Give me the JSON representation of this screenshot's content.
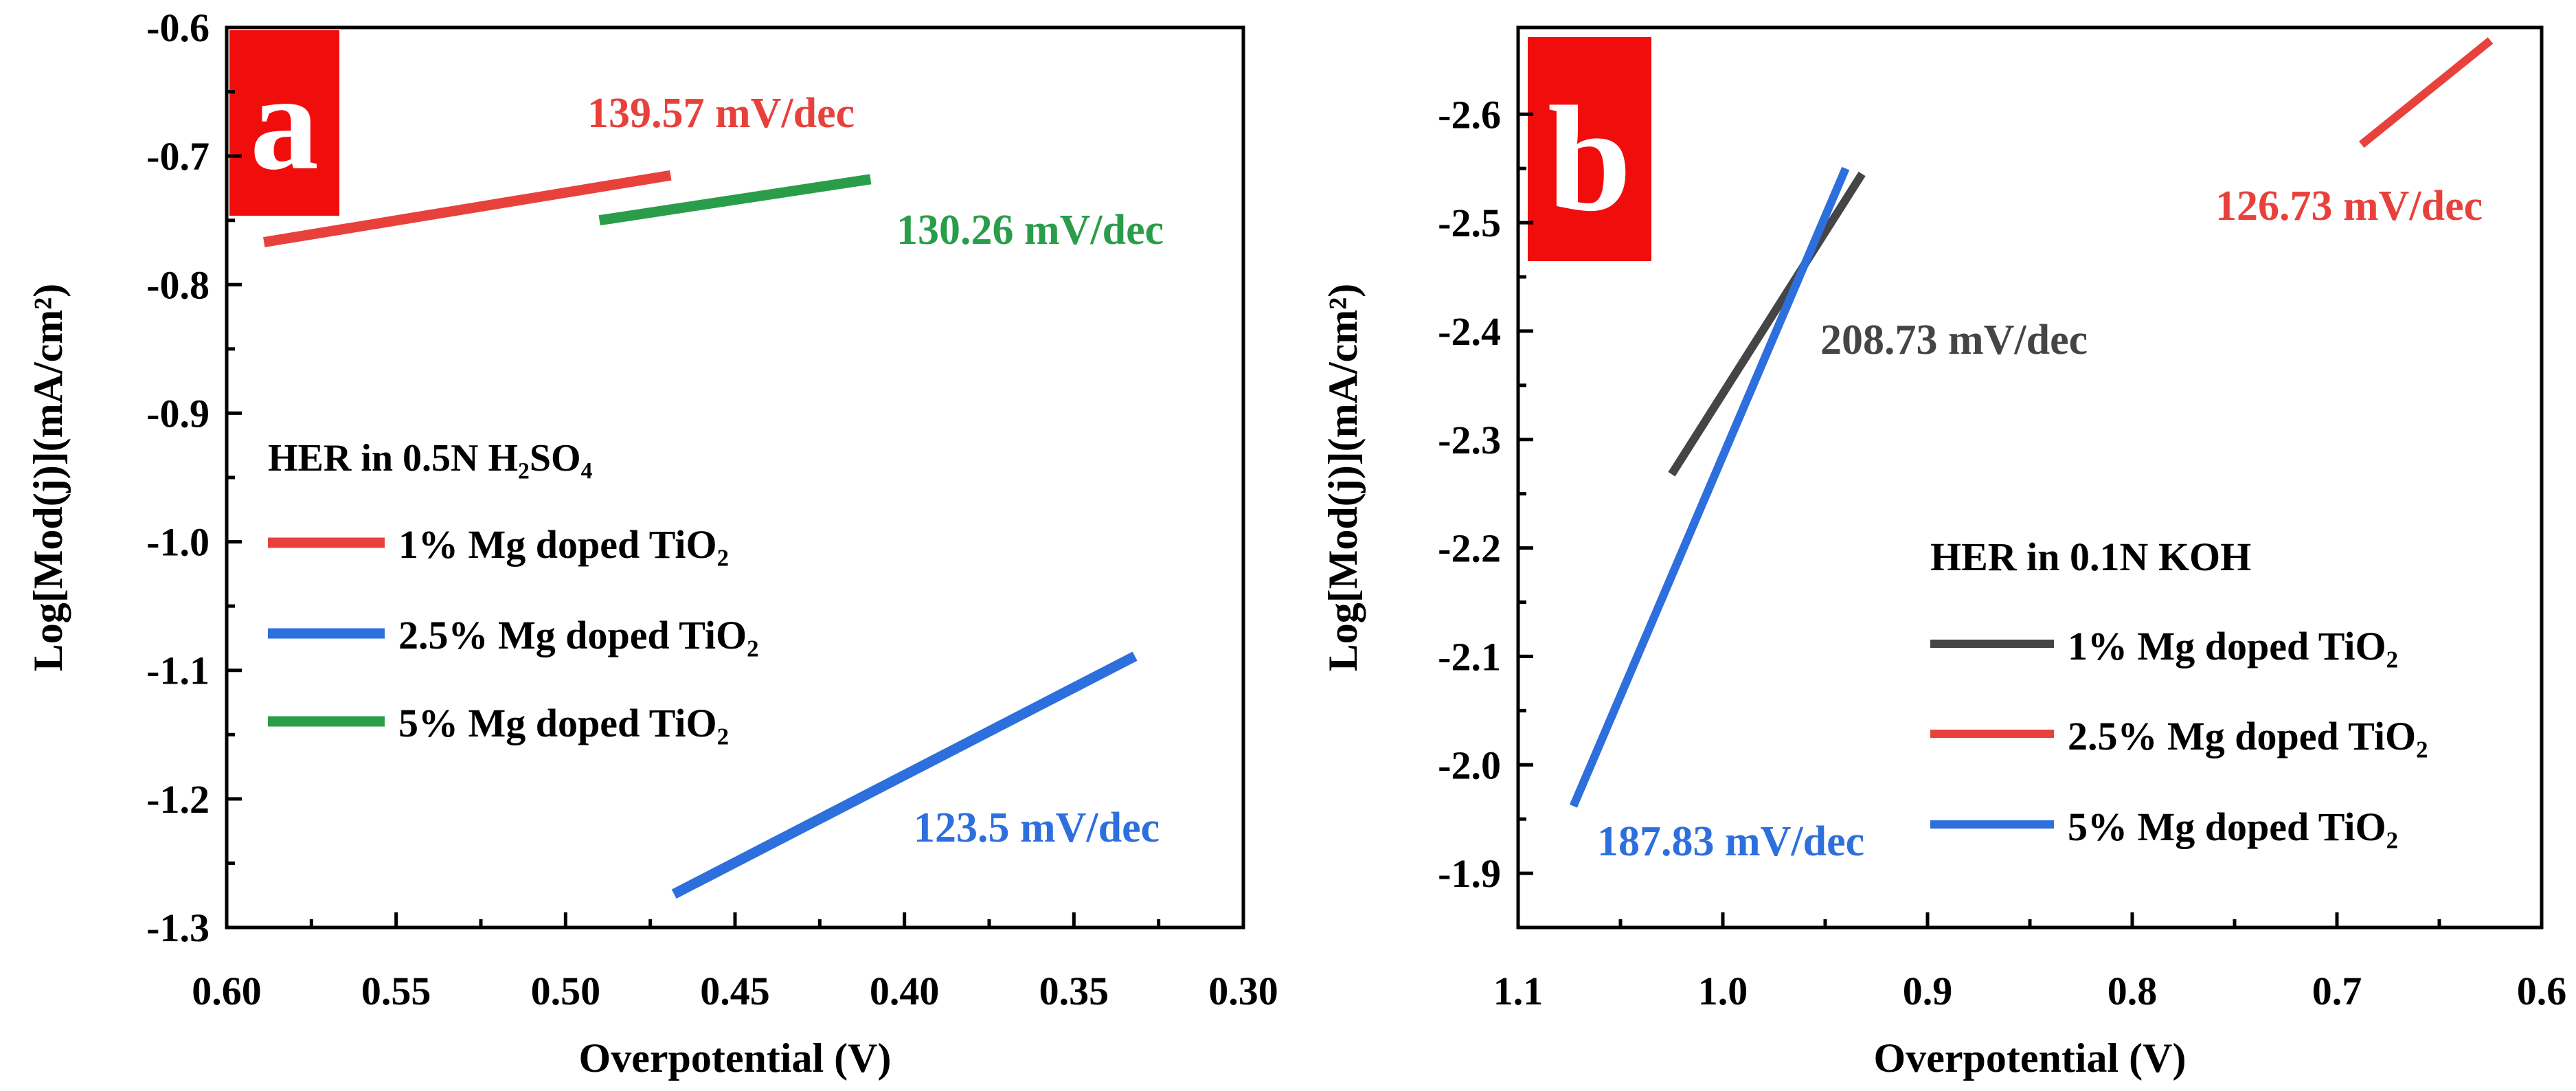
{
  "chart_data": [
    {
      "panel": "a",
      "type": "line",
      "xlabel": "Overpotential (V)",
      "ylabel": "Log[Mod(j)](mA/cm²)",
      "xlim": [
        0.6,
        0.3
      ],
      "ylim": [
        -1.3,
        -0.6
      ],
      "xticks": [
        "0.60",
        "0.55",
        "0.50",
        "0.45",
        "0.40",
        "0.35",
        "0.30"
      ],
      "yticks": [
        "-1.3",
        "-1.2",
        "-1.1",
        "-1.0",
        "-0.9",
        "-0.8",
        "-0.7",
        "-0.6"
      ],
      "legend": {
        "title": "HER in 0.5N H₂SO₄",
        "items": [
          "1% Mg doped TiO₂",
          "2.5% Mg doped TiO₂",
          "5% Mg doped TiO₂"
        ]
      },
      "series": [
        {
          "name": "1% Mg doped TiO₂",
          "color": "#e8413c",
          "x": [
            0.589,
            0.469
          ],
          "y": [
            -0.767,
            -0.715
          ],
          "annotation": "139.57 mV/dec"
        },
        {
          "name": "2.5% Mg doped TiO₂",
          "color": "#2d6fdc",
          "x": [
            0.468,
            0.332
          ],
          "y": [
            -1.274,
            -1.089
          ],
          "annotation": "123.5 mV/dec"
        },
        {
          "name": "5% Mg doped TiO₂",
          "color": "#2a9d4a",
          "x": [
            0.49,
            0.41
          ],
          "y": [
            -0.75,
            -0.718
          ],
          "annotation": "130.26 mV/dec"
        }
      ]
    },
    {
      "panel": "b",
      "type": "line",
      "xlabel": "Overpotential (V)",
      "ylabel": "Log[Mod(j)](mA/cm²)",
      "xlim": [
        1.1,
        0.6
      ],
      "ylim": [
        -1.85,
        -2.68
      ],
      "xticks": [
        "1.1",
        "1.0",
        "0.9",
        "0.8",
        "0.7",
        "0.6"
      ],
      "yticks": [
        "-1.9",
        "-2.0",
        "-2.1",
        "-2.2",
        "-2.3",
        "-2.4",
        "-2.5",
        "-2.6"
      ],
      "legend": {
        "title": "HER in 0.1N KOH",
        "items": [
          "1% Mg doped TiO₂",
          "2.5% Mg doped TiO₂",
          "5% Mg doped TiO₂"
        ]
      },
      "series": [
        {
          "name": "1% Mg doped TiO₂",
          "color": "#454545",
          "x": [
            1.025,
            0.932
          ],
          "y": [
            -2.268,
            -2.545
          ],
          "annotation": "208.73 mV/dec"
        },
        {
          "name": "2.5% Mg doped TiO₂",
          "color": "#e8413c",
          "x": [
            0.688,
            0.625
          ],
          "y": [
            -2.572,
            -2.668
          ],
          "annotation": "126.73 mV/dec"
        },
        {
          "name": "5% Mg doped TiO₂",
          "color": "#2d6fdc",
          "x": [
            1.073,
            0.94
          ],
          "y": [
            -1.962,
            -2.55
          ],
          "annotation": "187.83 mV/dec"
        }
      ]
    }
  ]
}
